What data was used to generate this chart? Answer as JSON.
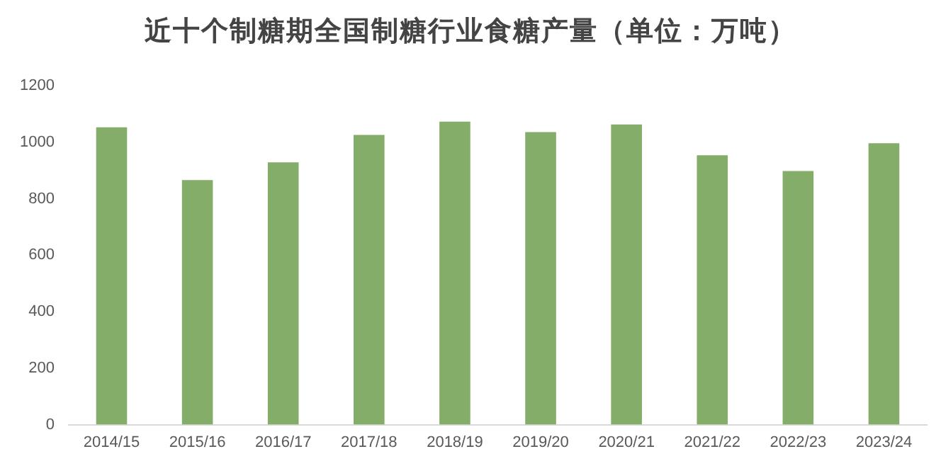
{
  "chart_data": {
    "type": "bar",
    "title": "近十个制糖期全国制糖行业食糖产量（单位：万吨）",
    "categories": [
      "2014/15",
      "2015/16",
      "2016/17",
      "2017/18",
      "2018/19",
      "2019/20",
      "2020/21",
      "2021/22",
      "2022/23",
      "2023/24"
    ],
    "values": [
      1053,
      866,
      929,
      1026,
      1073,
      1036,
      1063,
      954,
      898,
      997
    ],
    "color": "#83ad68",
    "ylim": [
      0,
      1200
    ],
    "yticks": [
      0,
      200,
      400,
      600,
      800,
      1000,
      1200
    ],
    "grid": false,
    "legend": false
  }
}
